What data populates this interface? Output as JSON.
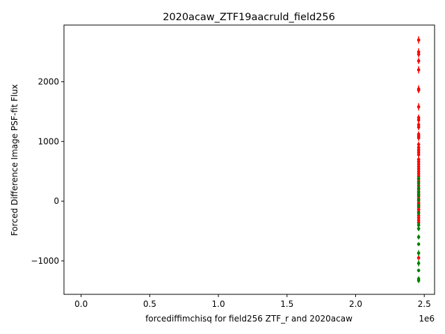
{
  "chart_data": {
    "type": "scatter",
    "title": "2020acaw_ZTF19aacruld_field256",
    "xlabel": "forcediffimchisq for field256 ZTF_r and 2020acaw",
    "ylabel": "Forced Difference Image PSF-fit Flux",
    "x_offset_label": "1e6",
    "xlim": [
      -125000,
      2575000
    ],
    "ylim": [
      -1560,
      2950
    ],
    "xticks": [
      0,
      500000,
      1000000,
      1500000,
      2000000,
      2500000
    ],
    "xtick_labels": [
      "0.0",
      "0.5",
      "1.0",
      "1.5",
      "2.0",
      "2.5"
    ],
    "yticks": [
      -1000,
      0,
      1000,
      2000
    ],
    "ytick_labels": [
      "-1000",
      "0",
      "1000",
      "2000"
    ],
    "grid": false,
    "series": [
      {
        "color": "#ff0000",
        "x": 2459000,
        "points": [
          [
            2700,
            60
          ],
          [
            2500,
            60
          ],
          [
            2460,
            50
          ],
          [
            2350,
            50
          ],
          [
            2200,
            60
          ],
          [
            1880,
            60
          ],
          [
            1860,
            50
          ],
          [
            1580,
            60
          ],
          [
            1400,
            50
          ],
          [
            1360,
            50
          ],
          [
            1280,
            50
          ],
          [
            1240,
            50
          ],
          [
            1120,
            50
          ],
          [
            1090,
            50
          ],
          [
            1060,
            50
          ],
          [
            950,
            45
          ],
          [
            900,
            45
          ],
          [
            860,
            45
          ],
          [
            820,
            45
          ],
          [
            780,
            45
          ],
          [
            700,
            40
          ],
          [
            660,
            40
          ],
          [
            620,
            40
          ],
          [
            580,
            40
          ],
          [
            540,
            40
          ],
          [
            500,
            40
          ],
          [
            460,
            40
          ],
          [
            420,
            40
          ],
          [
            370,
            40
          ],
          [
            330,
            40
          ],
          [
            260,
            40
          ],
          [
            200,
            40
          ],
          [
            160,
            35
          ],
          [
            120,
            35
          ],
          [
            80,
            35
          ],
          [
            40,
            35
          ],
          [
            10,
            35
          ],
          [
            -30,
            35
          ],
          [
            -60,
            35
          ],
          [
            -100,
            35
          ],
          [
            -140,
            35
          ],
          [
            -180,
            35
          ],
          [
            -240,
            35
          ],
          [
            -280,
            35
          ],
          [
            -320,
            35
          ],
          [
            -360,
            35
          ],
          [
            -950,
            35
          ]
        ]
      },
      {
        "color": "#008000",
        "x": 2459000,
        "points": [
          [
            380,
            35
          ],
          [
            300,
            35
          ],
          [
            220,
            35
          ],
          [
            150,
            35
          ],
          [
            100,
            35
          ],
          [
            20,
            35
          ],
          [
            -80,
            35
          ],
          [
            -200,
            35
          ],
          [
            -400,
            40
          ],
          [
            -460,
            40
          ],
          [
            -600,
            40
          ],
          [
            -720,
            30
          ],
          [
            -870,
            50
          ],
          [
            -1040,
            50
          ],
          [
            -1160,
            30
          ],
          [
            -1300,
            40
          ],
          [
            -1330,
            40
          ]
        ]
      }
    ]
  }
}
